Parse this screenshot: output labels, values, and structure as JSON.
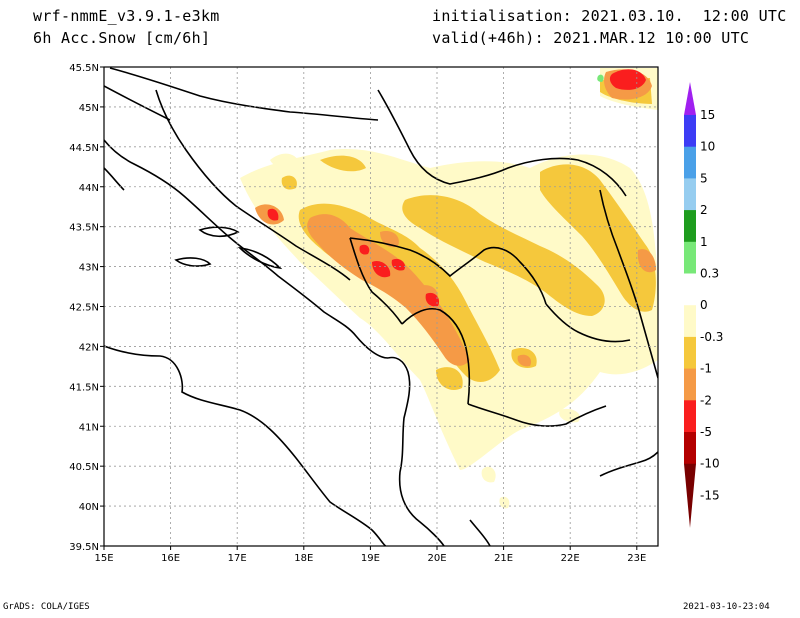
{
  "header": {
    "model": "wrf-nmmE_v3.9.1-e3km",
    "field": "6h Acc.Snow [cm/6h]",
    "initialisation": "initialisation: 2021.03.10.  12:00 UTC",
    "valid": "valid(+46h): 2021.MAR.12 10:00 UTC"
  },
  "footer": {
    "left": "GrADS: COLA/IGES",
    "right": "2021-03-10-23:04"
  },
  "map": {
    "lon_ticks": [
      "15E",
      "16E",
      "17E",
      "18E",
      "19E",
      "20E",
      "21E",
      "22E",
      "23E"
    ],
    "lat_ticks": [
      "45.5N",
      "45N",
      "44.5N",
      "44N",
      "43.5N",
      "43N",
      "42.5N",
      "42N",
      "41.5N",
      "41N",
      "40.5N",
      "40N",
      "39.5N"
    ],
    "lon_range": [
      15.0,
      23.3
    ],
    "lat_range": [
      39.5,
      45.5
    ],
    "grid": true
  },
  "colorbar": {
    "labels": [
      "15",
      "10",
      "5",
      "2",
      "1",
      "0.3",
      "0",
      "-0.3",
      "-1",
      "-2",
      "-5",
      "-10",
      "-15"
    ],
    "colors": {
      "top_arrow": "#a020f0",
      "band_10_15": "#3c3cf5",
      "band_5_10": "#4aa0e8",
      "band_2_5": "#96cdf0",
      "band_1_2": "#1e9c1e",
      "band_03_1": "#78e878",
      "band_neg03_03": "#ffffff",
      "band_neg1_neg03": "#fffac8",
      "band_neg2_neg1": "#f5c83c",
      "band_neg5_neg2": "#f59a46",
      "band_neg10_neg5": "#fa1e1e",
      "band_neg15_neg10": "#b40000",
      "bottom_arrow": "#780000"
    }
  }
}
